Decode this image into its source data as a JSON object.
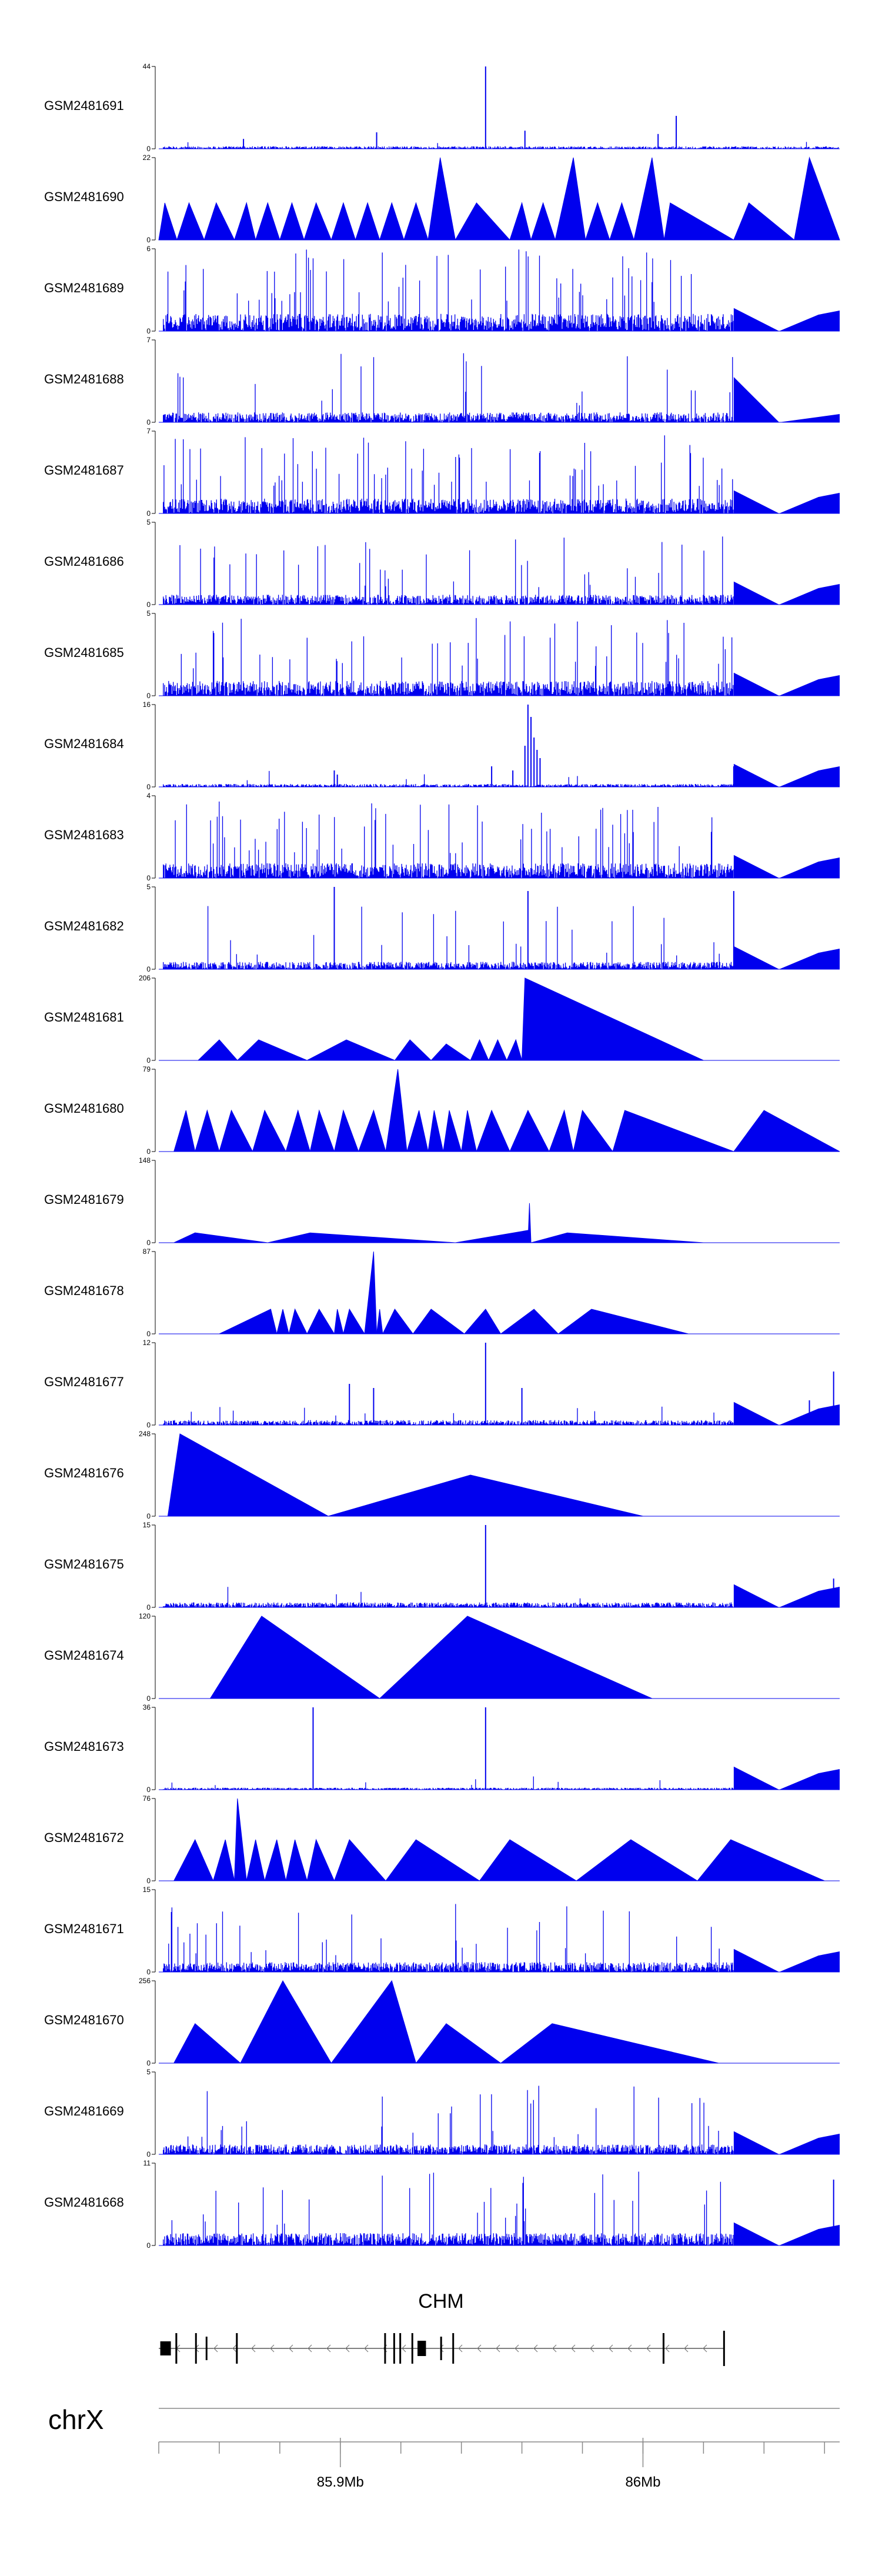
{
  "chart_data": {
    "type": "area",
    "title": "",
    "description_free": true,
    "color": "#0000ee",
    "x_axis": {
      "chromosome": "chrX",
      "tick_labels": [
        "85.9Mb",
        "86Mb"
      ],
      "tick_values_mb": [
        85.9,
        86.0
      ],
      "range_mb": [
        85.84,
        86.065
      ]
    },
    "gene": {
      "name": "CHM",
      "strand": "-",
      "start_mb": 85.84,
      "end_mb": 86.027
    },
    "tracks": [
      {
        "name": "GSM2481691",
        "ymax": "44",
        "ymin": "0",
        "profile": "dense_low",
        "base": 0.05,
        "peaks": [
          [
            85.948,
            1.0
          ],
          [
            85.912,
            0.2
          ],
          [
            85.961,
            0.22
          ],
          [
            85.868,
            0.12
          ],
          [
            86.011,
            0.4
          ],
          [
            86.005,
            0.18
          ]
        ]
      },
      {
        "name": "GSM2481690",
        "ymax": "22",
        "ymin": "0",
        "profile": "triangles",
        "tris": [
          [
            85.84,
            85.842,
            85.846,
            0.45
          ],
          [
            85.846,
            85.85,
            85.855,
            0.45
          ],
          [
            85.855,
            85.859,
            85.865,
            0.45
          ],
          [
            85.865,
            85.869,
            85.872,
            0.45
          ],
          [
            85.872,
            85.876,
            85.88,
            0.45
          ],
          [
            85.88,
            85.884,
            85.888,
            0.45
          ],
          [
            85.888,
            85.892,
            85.897,
            0.45
          ],
          [
            85.897,
            85.901,
            85.905,
            0.45
          ],
          [
            85.905,
            85.909,
            85.913,
            0.45
          ],
          [
            85.913,
            85.917,
            85.921,
            0.45
          ],
          [
            85.921,
            85.925,
            85.929,
            0.45
          ],
          [
            85.929,
            85.933,
            85.938,
            1.0
          ],
          [
            85.938,
            85.945,
            85.956,
            0.45
          ],
          [
            85.956,
            85.96,
            85.963,
            0.45
          ],
          [
            85.963,
            85.967,
            85.971,
            0.45
          ],
          [
            85.971,
            85.977,
            85.981,
            1.0
          ],
          [
            85.981,
            85.985,
            85.989,
            0.45
          ],
          [
            85.989,
            85.993,
            85.997,
            0.45
          ],
          [
            85.997,
            86.003,
            86.007,
            1.0
          ],
          [
            86.007,
            86.009,
            86.03,
            0.45
          ],
          [
            86.03,
            86.035,
            86.05,
            0.45
          ],
          [
            86.05,
            86.055,
            86.065,
            1.0
          ]
        ]
      },
      {
        "name": "GSM2481689",
        "ymax": "6",
        "ymin": "0",
        "profile": "dense_high",
        "base": 0.35,
        "tail": "gap"
      },
      {
        "name": "GSM2481688",
        "ymax": "7",
        "ymin": "0",
        "profile": "dense_mid",
        "base": 0.2,
        "tail": "ramp"
      },
      {
        "name": "GSM2481687",
        "ymax": "7",
        "ymin": "0",
        "profile": "dense_high",
        "base": 0.3,
        "tail": "gap"
      },
      {
        "name": "GSM2481686",
        "ymax": "5",
        "ymin": "0",
        "profile": "dense_mid",
        "base": 0.2,
        "tail": "gap"
      },
      {
        "name": "GSM2481685",
        "ymax": "5",
        "ymin": "0",
        "profile": "dense_high",
        "base": 0.3,
        "tail": "gap"
      },
      {
        "name": "GSM2481684",
        "ymax": "16",
        "ymin": "0",
        "profile": "dense_low",
        "base": 0.06,
        "peaks": [
          [
            85.962,
            1.0
          ],
          [
            85.963,
            0.85
          ],
          [
            85.964,
            0.6
          ],
          [
            85.961,
            0.5
          ],
          [
            85.965,
            0.45
          ],
          [
            85.966,
            0.35
          ],
          [
            85.957,
            0.2
          ],
          [
            85.95,
            0.25
          ],
          [
            85.899,
            0.15
          ],
          [
            85.898,
            0.2
          ],
          [
            86.03,
            0.25
          ]
        ],
        "tail": "gap"
      },
      {
        "name": "GSM2481683",
        "ymax": "4",
        "ymin": "0",
        "profile": "dense_high",
        "base": 0.3,
        "tail": "gap"
      },
      {
        "name": "GSM2481682",
        "ymax": "5",
        "ymin": "0",
        "profile": "dense_mid",
        "base": 0.15,
        "peaks": [
          [
            85.898,
            1.0
          ],
          [
            85.962,
            0.95
          ],
          [
            86.03,
            0.95
          ]
        ],
        "tail": "gap"
      },
      {
        "name": "GSM2481681",
        "ymax": "206",
        "ymin": "0",
        "profile": "triangles",
        "tris": [
          [
            85.853,
            85.86,
            85.866,
            0.25
          ],
          [
            85.866,
            85.873,
            85.889,
            0.25
          ],
          [
            85.889,
            85.902,
            85.918,
            0.25
          ],
          [
            85.918,
            85.923,
            85.93,
            0.25
          ],
          [
            85.93,
            85.935,
            85.943,
            0.2
          ],
          [
            85.943,
            85.946,
            85.949,
            0.25
          ],
          [
            85.949,
            85.952,
            85.955,
            0.25
          ],
          [
            85.955,
            85.958,
            85.96,
            0.25
          ],
          [
            85.96,
            85.961,
            86.02,
            1.0
          ]
        ]
      },
      {
        "name": "GSM2481680",
        "ymax": "79",
        "ymin": "0",
        "profile": "triangles",
        "tris": [
          [
            85.845,
            85.849,
            85.852,
            0.5
          ],
          [
            85.852,
            85.856,
            85.86,
            0.5
          ],
          [
            85.86,
            85.864,
            85.871,
            0.5
          ],
          [
            85.871,
            85.875,
            85.882,
            0.5
          ],
          [
            85.882,
            85.886,
            85.89,
            0.5
          ],
          [
            85.89,
            85.893,
            85.898,
            0.5
          ],
          [
            85.898,
            85.901,
            85.906,
            0.5
          ],
          [
            85.906,
            85.911,
            85.915,
            0.5
          ],
          [
            85.915,
            85.919,
            85.922,
            1.0
          ],
          [
            85.922,
            85.926,
            85.929,
            0.5
          ],
          [
            85.929,
            85.931,
            85.934,
            0.5
          ],
          [
            85.934,
            85.936,
            85.94,
            0.5
          ],
          [
            85.94,
            85.942,
            85.945,
            0.5
          ],
          [
            85.945,
            85.95,
            85.956,
            0.5
          ],
          [
            85.956,
            85.962,
            85.969,
            0.5
          ],
          [
            85.969,
            85.974,
            85.977,
            0.5
          ],
          [
            85.977,
            85.98,
            85.99,
            0.5
          ],
          [
            85.99,
            85.994,
            86.03,
            0.5
          ],
          [
            86.03,
            86.04,
            86.065,
            0.5
          ]
        ]
      },
      {
        "name": "GSM2481679",
        "ymax": "148",
        "ymin": "0",
        "profile": "triangles",
        "tris": [
          [
            85.845,
            85.852,
            85.876,
            0.12
          ],
          [
            85.876,
            85.89,
            85.938,
            0.12
          ],
          [
            85.938,
            85.962,
            85.963,
            0.15
          ],
          [
            85.962,
            85.9625,
            85.963,
            0.48
          ],
          [
            85.963,
            85.975,
            86.02,
            0.12
          ]
        ]
      },
      {
        "name": "GSM2481678",
        "ymax": "87",
        "ymin": "0",
        "profile": "triangles",
        "tris": [
          [
            85.86,
            85.877,
            85.879,
            0.3
          ],
          [
            85.879,
            85.881,
            85.883,
            0.3
          ],
          [
            85.883,
            85.885,
            85.889,
            0.3
          ],
          [
            85.889,
            85.893,
            85.898,
            0.3
          ],
          [
            85.898,
            85.899,
            85.901,
            0.3
          ],
          [
            85.901,
            85.903,
            85.908,
            0.3
          ],
          [
            85.908,
            85.911,
            85.912,
            1.0
          ],
          [
            85.912,
            85.913,
            85.914,
            0.3
          ],
          [
            85.914,
            85.918,
            85.924,
            0.3
          ],
          [
            85.924,
            85.93,
            85.941,
            0.3
          ],
          [
            85.941,
            85.948,
            85.953,
            0.3
          ],
          [
            85.953,
            85.964,
            85.972,
            0.3
          ],
          [
            85.972,
            85.983,
            86.015,
            0.3
          ]
        ]
      },
      {
        "name": "GSM2481677",
        "ymax": "12",
        "ymin": "0",
        "profile": "dense_low",
        "base": 0.1,
        "peaks": [
          [
            85.948,
            1.0
          ],
          [
            85.96,
            0.45
          ],
          [
            85.903,
            0.5
          ],
          [
            85.911,
            0.45
          ],
          [
            86.063,
            0.65
          ],
          [
            86.055,
            0.3
          ]
        ],
        "tail": "gap"
      },
      {
        "name": "GSM2481676",
        "ymax": "248",
        "ymin": "0",
        "profile": "triangles",
        "tris": [
          [
            85.843,
            85.847,
            85.896,
            1.0
          ],
          [
            85.896,
            85.943,
            86.0,
            0.5
          ]
        ]
      },
      {
        "name": "GSM2481675",
        "ymax": "15",
        "ymin": "0",
        "profile": "dense_low",
        "base": 0.1,
        "peaks": [
          [
            85.948,
            1.0
          ],
          [
            86.063,
            0.35
          ]
        ],
        "tail": "gap"
      },
      {
        "name": "GSM2481674",
        "ymax": "120",
        "ymin": "0",
        "profile": "triangles",
        "tris": [
          [
            85.857,
            85.874,
            85.913,
            1.0
          ],
          [
            85.913,
            85.942,
            86.003,
            1.0
          ]
        ]
      },
      {
        "name": "GSM2481673",
        "ymax": "36",
        "ymin": "0",
        "profile": "dense_low",
        "base": 0.04,
        "peaks": [
          [
            85.891,
            1.0
          ],
          [
            85.948,
            1.0
          ]
        ],
        "tail": "gap"
      },
      {
        "name": "GSM2481672",
        "ymax": "76",
        "ymin": "0",
        "profile": "triangles",
        "tris": [
          [
            85.845,
            85.852,
            85.858,
            0.5
          ],
          [
            85.858,
            85.862,
            85.865,
            0.5
          ],
          [
            85.865,
            85.866,
            85.869,
            1.0
          ],
          [
            85.869,
            85.872,
            85.875,
            0.5
          ],
          [
            85.875,
            85.879,
            85.882,
            0.5
          ],
          [
            85.882,
            85.885,
            85.889,
            0.5
          ],
          [
            85.889,
            85.892,
            85.898,
            0.5
          ],
          [
            85.898,
            85.903,
            85.915,
            0.5
          ],
          [
            85.915,
            85.925,
            85.946,
            0.5
          ],
          [
            85.946,
            85.956,
            85.978,
            0.5
          ],
          [
            85.978,
            85.996,
            86.018,
            0.5
          ],
          [
            86.018,
            86.029,
            86.06,
            0.5
          ]
        ]
      },
      {
        "name": "GSM2481671",
        "ymax": "15",
        "ymin": "0",
        "profile": "dense_mid",
        "base": 0.2,
        "tail": "gap"
      },
      {
        "name": "GSM2481670",
        "ymax": "256",
        "ymin": "0",
        "profile": "triangles",
        "tris": [
          [
            85.845,
            85.852,
            85.867,
            0.48
          ],
          [
            85.867,
            85.881,
            85.897,
            1.0
          ],
          [
            85.897,
            85.917,
            85.925,
            1.0
          ],
          [
            85.925,
            85.935,
            85.953,
            0.48
          ],
          [
            85.953,
            85.97,
            86.025,
            0.48
          ]
        ]
      },
      {
        "name": "GSM2481669",
        "ymax": "5",
        "ymin": "0",
        "profile": "dense_mid",
        "base": 0.2,
        "tail": "gap"
      },
      {
        "name": "GSM2481668",
        "ymax": "11",
        "ymin": "0",
        "profile": "dense_mid",
        "base": 0.25,
        "peaks": [
          [
            86.063,
            0.8
          ]
        ],
        "tail": "gap"
      }
    ]
  }
}
